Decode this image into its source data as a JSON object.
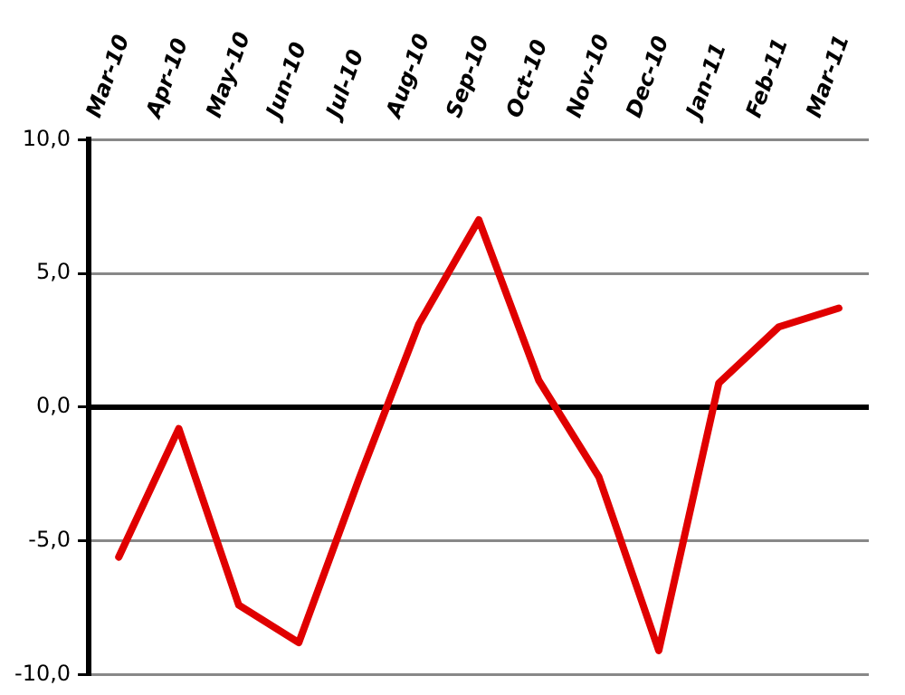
{
  "chart_data": {
    "type": "line",
    "categories": [
      "Mar-10",
      "Apr-10",
      "May-10",
      "Jun-10",
      "Jul-10",
      "Aug-10",
      "Sep-10",
      "Oct-10",
      "Nov-10",
      "Dec-10",
      "Jan-11",
      "Feb-11",
      "Mar-11"
    ],
    "series": [
      {
        "color": "#e00000",
        "values": [
          -5.6,
          -0.8,
          -7.4,
          -8.8,
          -2.7,
          3.1,
          7.0,
          1.0,
          -2.6,
          -9.1,
          0.9,
          3.0,
          3.7
        ]
      }
    ],
    "ylim": [
      -10,
      10
    ],
    "yticks": [
      {
        "value": -10,
        "label": "-10,0"
      },
      {
        "value": -5,
        "label": "-5,0"
      },
      {
        "value": 0,
        "label": "0,0"
      },
      {
        "value": 5,
        "label": "5,0"
      },
      {
        "value": 10,
        "label": "10,0"
      }
    ],
    "grid": "y",
    "legend": false,
    "marker": "none",
    "line_style": "solid"
  }
}
